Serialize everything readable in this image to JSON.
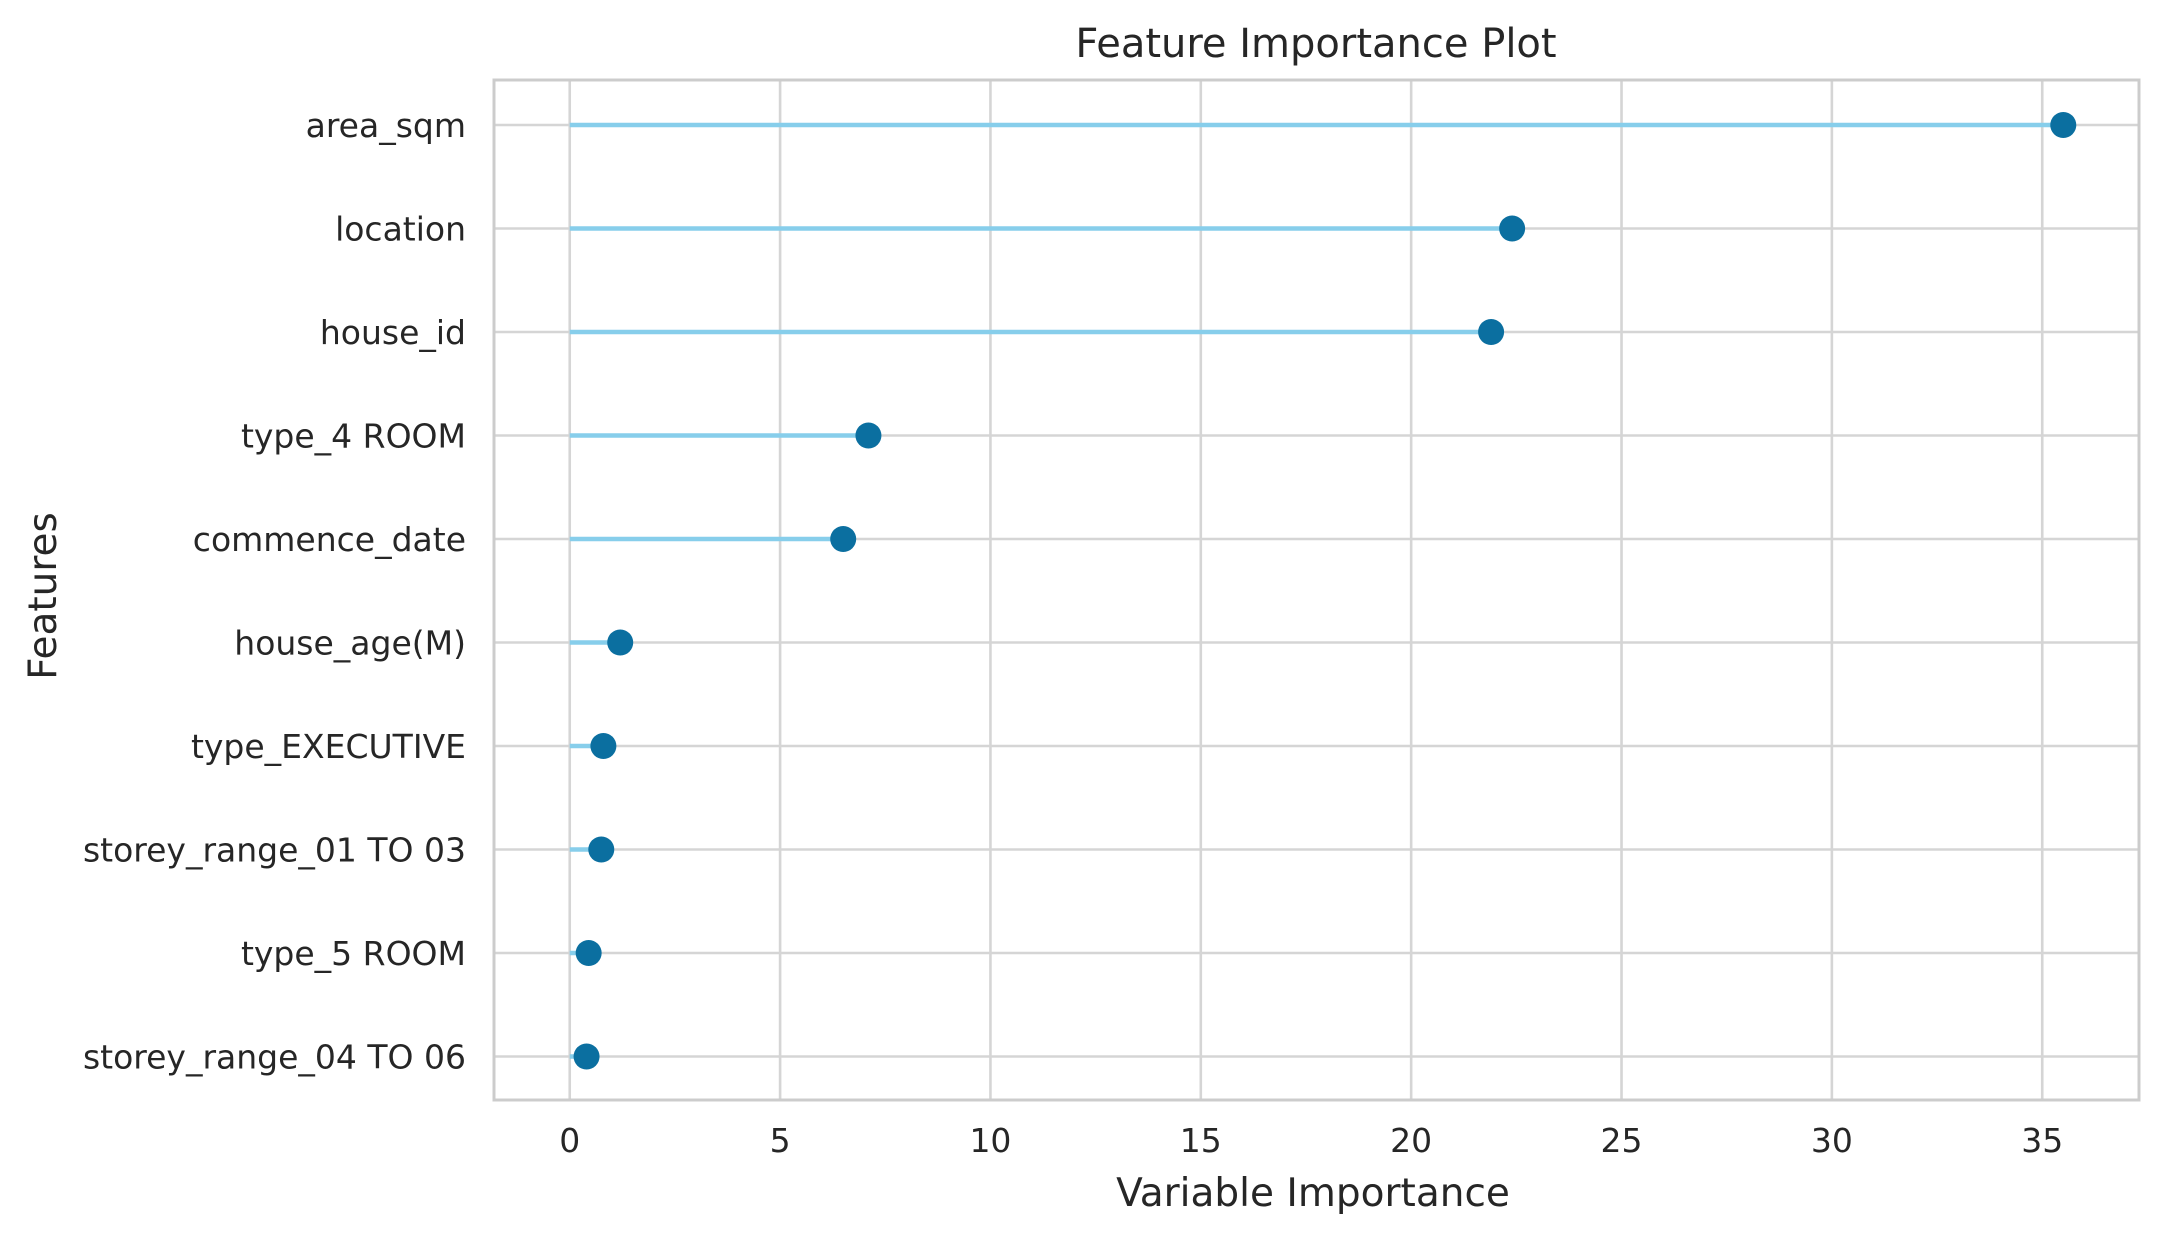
{
  "chart_data": {
    "type": "lollipop",
    "title": "Feature Importance Plot",
    "xlabel": "Variable Importance",
    "ylabel": "Features",
    "xlim": [
      -1.8,
      37.3
    ],
    "xticks": [
      0,
      5,
      10,
      15,
      20,
      25,
      30,
      35
    ],
    "grid": true,
    "categories": [
      "area_sqm",
      "location",
      "house_id",
      "type_4 ROOM",
      "commence_date",
      "house_age(M)",
      "type_EXECUTIVE",
      "storey_range_01 TO 03",
      "type_5 ROOM",
      "storey_range_04 TO 06"
    ],
    "values": [
      35.5,
      22.4,
      21.9,
      7.1,
      6.5,
      1.2,
      0.8,
      0.75,
      0.45,
      0.4
    ],
    "colors": {
      "stem": "#87ceeb",
      "marker": "#0b6fa0",
      "grid": "#d5d5d5",
      "frame": "#cccccc",
      "text": "#262626"
    }
  }
}
